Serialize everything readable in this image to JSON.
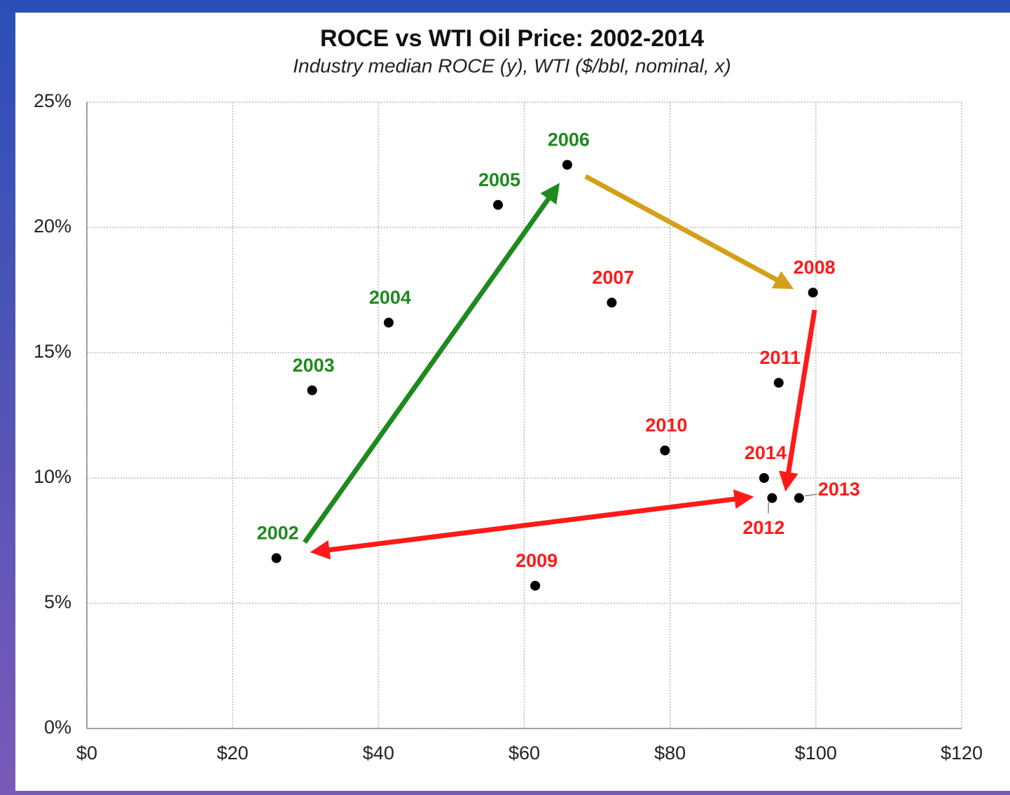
{
  "chart_data": {
    "type": "scatter",
    "title": "ROCE vs WTI Oil Price: 2002-2014",
    "subtitle": "Industry median ROCE (y), WTI ($/bbl, nominal, x)",
    "x": [
      26.0,
      30.9,
      41.4,
      56.4,
      65.9,
      72.0,
      99.6,
      61.5,
      79.3,
      94.9,
      94.0,
      97.7,
      92.9
    ],
    "values": [
      6.8,
      13.5,
      16.2,
      20.9,
      22.5,
      17.0,
      17.4,
      5.7,
      11.1,
      13.8,
      9.2,
      9.2,
      10.0
    ],
    "labels": [
      "2002",
      "2003",
      "2004",
      "2005",
      "2006",
      "2007",
      "2008",
      "2009",
      "2010",
      "2011",
      "2012",
      "2013",
      "2014"
    ],
    "label_colors": [
      "#1e8a1e",
      "#1e8a1e",
      "#1e8a1e",
      "#1e8a1e",
      "#1e8a1e",
      "#ff1a1a",
      "#ff1a1a",
      "#ff1a1a",
      "#ff1a1a",
      "#ff1a1a",
      "#ff1a1a",
      "#ff1a1a",
      "#ff1a1a"
    ],
    "color": "#000000",
    "xlim": [
      0,
      120
    ],
    "xticks": [
      {
        "value": 0,
        "label": "$0"
      },
      {
        "value": 20,
        "label": "$20"
      },
      {
        "value": 40,
        "label": "$40"
      },
      {
        "value": 60,
        "label": "$60"
      },
      {
        "value": 80,
        "label": "$80"
      },
      {
        "value": 100,
        "label": "$100"
      },
      {
        "value": 120,
        "label": "$120"
      }
    ],
    "ylim": [
      0,
      25
    ],
    "yticks": [
      {
        "value": 0,
        "label": "0%"
      },
      {
        "value": 5,
        "label": "5%"
      },
      {
        "value": 10,
        "label": "10%"
      },
      {
        "value": 15,
        "label": "15%"
      },
      {
        "value": 20,
        "label": "20%"
      },
      {
        "value": 25,
        "label": "25%"
      }
    ],
    "grid": true
  }
}
